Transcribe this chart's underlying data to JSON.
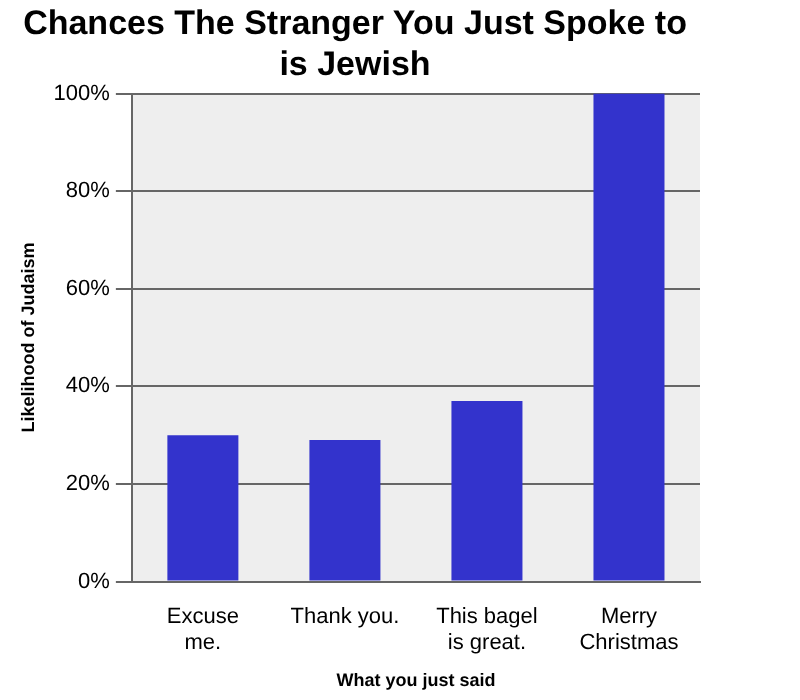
{
  "chart_data": {
    "type": "bar",
    "title": "Chances The Stranger You Just Spoke to\nis Jewish",
    "xlabel": "What you just said",
    "ylabel": "Likelihood of Judaism",
    "categories": [
      "Excuse\nme.",
      "Thank you.",
      "This bagel\nis great.",
      "Merry\nChristmas"
    ],
    "values": [
      30,
      29,
      37,
      100
    ],
    "color": "#3333cc",
    "ylim": [
      0,
      100
    ],
    "yticks": [
      {
        "value": 0,
        "label": "0%"
      },
      {
        "value": 20,
        "label": "20%"
      },
      {
        "value": 40,
        "label": "40%"
      },
      {
        "value": 60,
        "label": "60%"
      },
      {
        "value": 80,
        "label": "80%"
      },
      {
        "value": 100,
        "label": "100%"
      }
    ],
    "grid": "y",
    "legend": false
  }
}
